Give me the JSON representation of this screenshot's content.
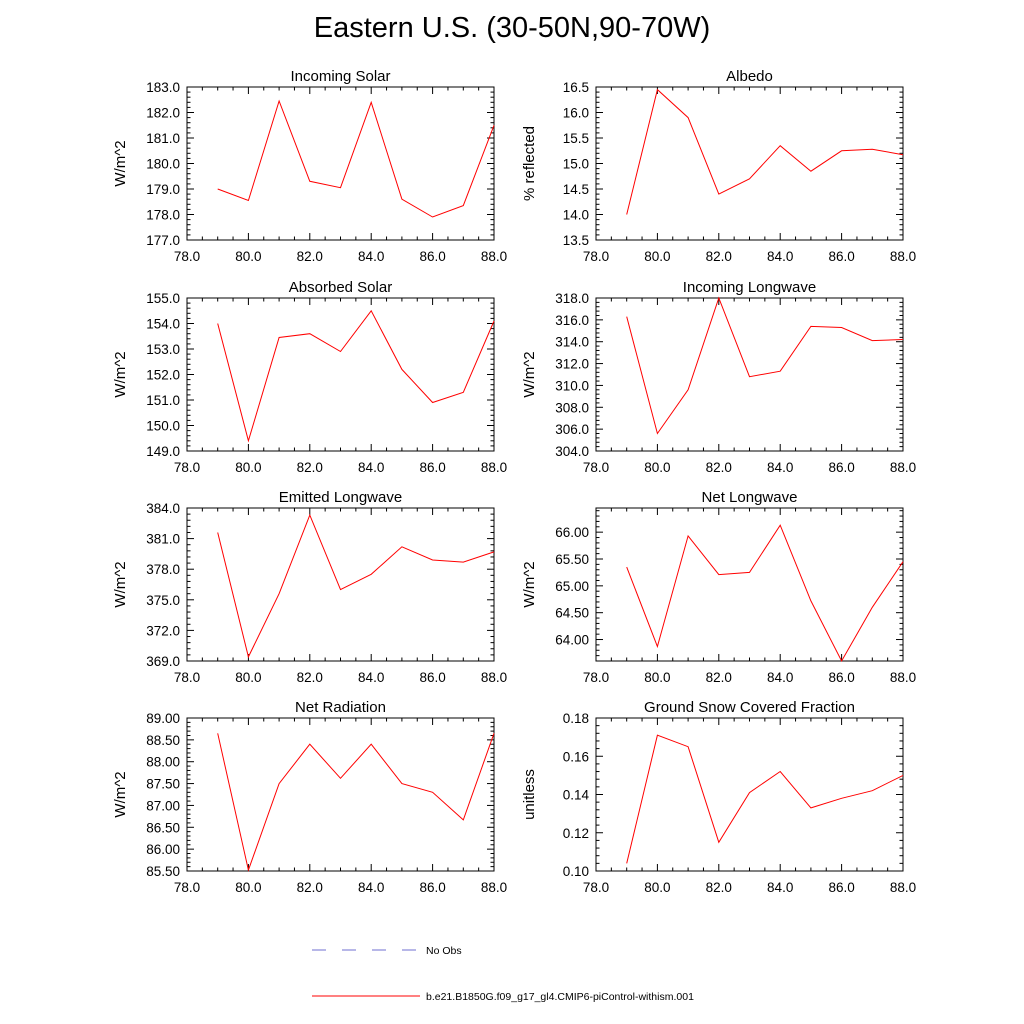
{
  "title": "Eastern U.S. (30-50N,90-70W)",
  "colors": {
    "model_line": "#ff0000",
    "obs_line": "#6f6fd0",
    "axis": "#000000"
  },
  "legend": {
    "obs_label": "No Obs",
    "model_label": "b.e21.B1850G.f09_g17_gl4.CMIP6-piControl-withism.001"
  },
  "chart_data": [
    {
      "type": "line",
      "title": "Incoming Solar",
      "xlabel": "",
      "ylabel": "W/m^2",
      "xlim": [
        78,
        88
      ],
      "ylim": [
        177,
        183
      ],
      "xticks": [
        "78.0",
        "80.0",
        "82.0",
        "84.0",
        "86.0",
        "88.0"
      ],
      "yticks": [
        "177.0",
        "178.0",
        "179.0",
        "180.0",
        "181.0",
        "182.0",
        "183.0"
      ],
      "series": [
        {
          "name": "b.e21.B1850G.f09_g17_gl4.CMIP6-piControl-withism.001",
          "x": [
            79,
            80,
            81,
            82,
            83,
            84,
            85,
            86,
            87,
            88
          ],
          "values": [
            179.0,
            178.55,
            182.45,
            179.3,
            179.05,
            182.4,
            178.6,
            177.9,
            178.35,
            181.5
          ]
        }
      ]
    },
    {
      "type": "line",
      "title": "Albedo",
      "xlabel": "",
      "ylabel": "% reflected",
      "xlim": [
        78,
        88
      ],
      "ylim": [
        13.5,
        16.5
      ],
      "xticks": [
        "78.0",
        "80.0",
        "82.0",
        "84.0",
        "86.0",
        "88.0"
      ],
      "yticks": [
        "13.5",
        "14.0",
        "14.5",
        "15.0",
        "15.5",
        "16.0",
        "16.5"
      ],
      "series": [
        {
          "name": "b.e21.B1850G.f09_g17_gl4.CMIP6-piControl-withism.001",
          "x": [
            79,
            80,
            81,
            82,
            83,
            84,
            85,
            86,
            87,
            88
          ],
          "values": [
            14.0,
            16.45,
            15.9,
            14.4,
            14.7,
            15.35,
            14.85,
            15.25,
            15.28,
            15.17
          ]
        }
      ]
    },
    {
      "type": "line",
      "title": "Absorbed Solar",
      "xlabel": "",
      "ylabel": "W/m^2",
      "xlim": [
        78,
        88
      ],
      "ylim": [
        149,
        155
      ],
      "xticks": [
        "78.0",
        "80.0",
        "82.0",
        "84.0",
        "86.0",
        "88.0"
      ],
      "yticks": [
        "149.0",
        "150.0",
        "151.0",
        "152.0",
        "153.0",
        "154.0",
        "155.0"
      ],
      "series": [
        {
          "name": "b.e21.B1850G.f09_g17_gl4.CMIP6-piControl-withism.001",
          "x": [
            79,
            80,
            81,
            82,
            83,
            84,
            85,
            86,
            87,
            88
          ],
          "values": [
            154.0,
            149.4,
            153.45,
            153.6,
            152.9,
            154.5,
            152.2,
            150.9,
            151.3,
            154.1
          ]
        }
      ]
    },
    {
      "type": "line",
      "title": "Incoming Longwave",
      "xlabel": "",
      "ylabel": "W/m^2",
      "xlim": [
        78,
        88
      ],
      "ylim": [
        304,
        318
      ],
      "xticks": [
        "78.0",
        "80.0",
        "82.0",
        "84.0",
        "86.0",
        "88.0"
      ],
      "yticks": [
        "304.0",
        "306.0",
        "308.0",
        "310.0",
        "312.0",
        "314.0",
        "316.0",
        "318.0"
      ],
      "series": [
        {
          "name": "b.e21.B1850G.f09_g17_gl4.CMIP6-piControl-withism.001",
          "x": [
            79,
            80,
            81,
            82,
            83,
            84,
            85,
            86,
            87,
            88
          ],
          "values": [
            316.3,
            305.6,
            309.6,
            318.0,
            310.8,
            311.3,
            315.4,
            315.3,
            314.1,
            314.2
          ]
        }
      ]
    },
    {
      "type": "line",
      "title": "Emitted Longwave",
      "xlabel": "",
      "ylabel": "W/m^2",
      "xlim": [
        78,
        88
      ],
      "ylim": [
        369,
        384
      ],
      "xticks": [
        "78.0",
        "80.0",
        "82.0",
        "84.0",
        "86.0",
        "88.0"
      ],
      "yticks": [
        "369.0",
        "372.0",
        "375.0",
        "378.0",
        "381.0",
        "384.0"
      ],
      "series": [
        {
          "name": "b.e21.B1850G.f09_g17_gl4.CMIP6-piControl-withism.001",
          "x": [
            79,
            80,
            81,
            82,
            83,
            84,
            85,
            86,
            87,
            88
          ],
          "values": [
            381.6,
            369.4,
            375.6,
            383.3,
            376.0,
            377.5,
            380.2,
            378.9,
            378.7,
            379.7
          ]
        }
      ]
    },
    {
      "type": "line",
      "title": "Net Longwave",
      "xlabel": "",
      "ylabel": "W/m^2",
      "xlim": [
        78,
        88
      ],
      "ylim": [
        63.6,
        66.45
      ],
      "xticks": [
        "78.0",
        "80.0",
        "82.0",
        "84.0",
        "86.0",
        "88.0"
      ],
      "yticks": [
        "64.00",
        "64.50",
        "65.00",
        "65.50",
        "66.00"
      ],
      "series": [
        {
          "name": "b.e21.B1850G.f09_g17_gl4.CMIP6-piControl-withism.001",
          "x": [
            79,
            80,
            81,
            82,
            83,
            84,
            85,
            86,
            87,
            88
          ],
          "values": [
            65.35,
            63.87,
            65.93,
            65.21,
            65.25,
            66.13,
            64.72,
            63.6,
            64.6,
            65.45
          ]
        }
      ]
    },
    {
      "type": "line",
      "title": "Net Radiation",
      "xlabel": "",
      "ylabel": "W/m^2",
      "xlim": [
        78,
        88
      ],
      "ylim": [
        85.5,
        89.0
      ],
      "xticks": [
        "78.0",
        "80.0",
        "82.0",
        "84.0",
        "86.0",
        "88.0"
      ],
      "yticks": [
        "85.50",
        "86.00",
        "86.50",
        "87.00",
        "87.50",
        "88.00",
        "88.50",
        "89.00"
      ],
      "series": [
        {
          "name": "b.e21.B1850G.f09_g17_gl4.CMIP6-piControl-withism.001",
          "x": [
            79,
            80,
            81,
            82,
            83,
            84,
            85,
            86,
            87,
            88
          ],
          "values": [
            88.65,
            85.52,
            87.5,
            88.4,
            87.62,
            88.4,
            87.5,
            87.3,
            86.67,
            88.65
          ]
        }
      ]
    },
    {
      "type": "line",
      "title": "Ground Snow Covered Fraction",
      "xlabel": "",
      "ylabel": "unitless",
      "xlim": [
        78,
        88
      ],
      "ylim": [
        0.1,
        0.18
      ],
      "xticks": [
        "78.0",
        "80.0",
        "82.0",
        "84.0",
        "86.0",
        "88.0"
      ],
      "yticks": [
        "0.10",
        "0.12",
        "0.14",
        "0.16",
        "0.18"
      ],
      "series": [
        {
          "name": "b.e21.B1850G.f09_g17_gl4.CMIP6-piControl-withism.001",
          "x": [
            79,
            80,
            81,
            82,
            83,
            84,
            85,
            86,
            87,
            88
          ],
          "values": [
            0.104,
            0.171,
            0.165,
            0.115,
            0.141,
            0.152,
            0.133,
            0.138,
            0.142,
            0.15
          ]
        }
      ]
    }
  ]
}
